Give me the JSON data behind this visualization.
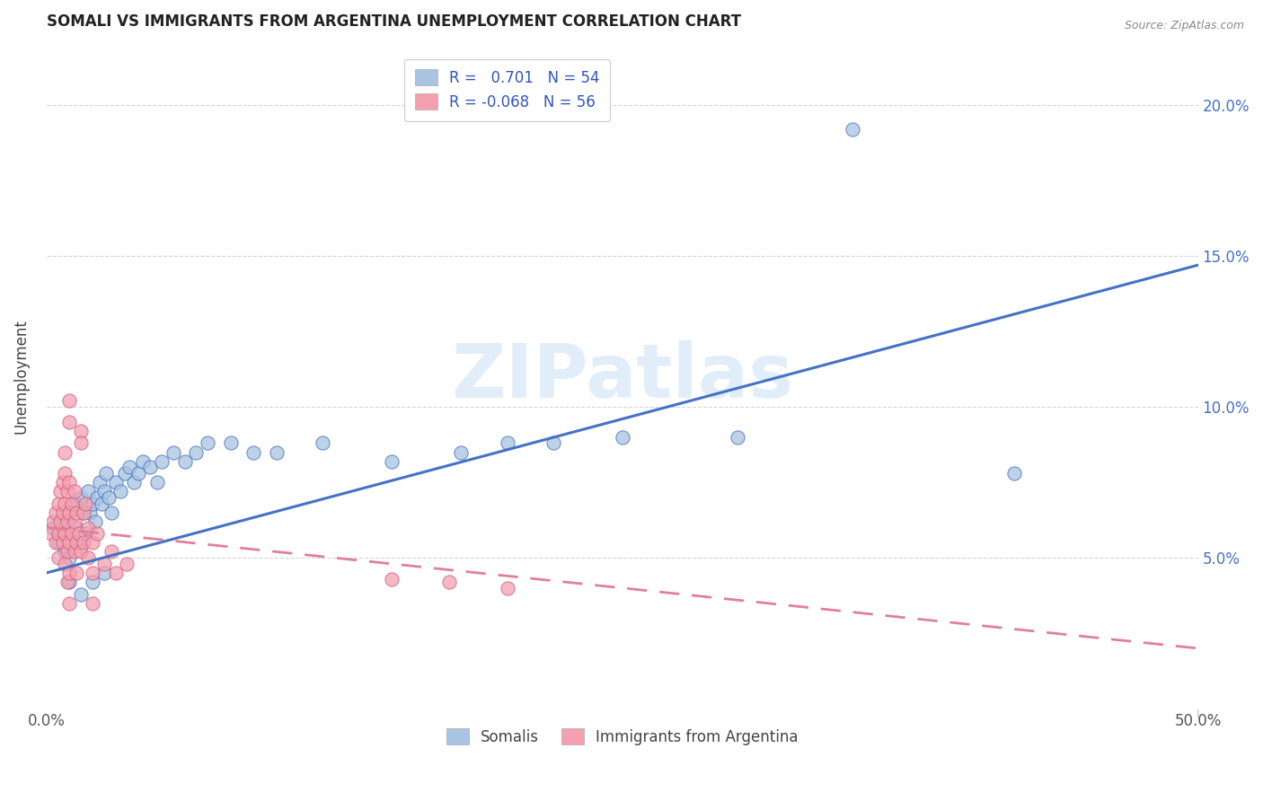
{
  "title": "SOMALI VS IMMIGRANTS FROM ARGENTINA UNEMPLOYMENT CORRELATION CHART",
  "source": "Source: ZipAtlas.com",
  "ylabel": "Unemployment",
  "somali_color": "#a8c4e0",
  "argentina_color": "#f4a0b0",
  "somali_line_color": "#4472c4",
  "argentina_line_color": "#e08098",
  "watermark": "ZIPatlas",
  "xmin": 0.0,
  "xmax": 0.5,
  "ymin": 0.0,
  "ymax": 0.22,
  "ytick_vals": [
    0.05,
    0.1,
    0.15,
    0.2
  ],
  "ytick_labels": [
    "5.0%",
    "10.0%",
    "15.0%",
    "20.0%"
  ],
  "somali_scatter": [
    [
      0.003,
      0.06
    ],
    [
      0.005,
      0.055
    ],
    [
      0.007,
      0.058
    ],
    [
      0.008,
      0.052
    ],
    [
      0.009,
      0.062
    ],
    [
      0.01,
      0.065
    ],
    [
      0.01,
      0.05
    ],
    [
      0.012,
      0.068
    ],
    [
      0.013,
      0.06
    ],
    [
      0.014,
      0.055
    ],
    [
      0.015,
      0.07
    ],
    [
      0.016,
      0.065
    ],
    [
      0.017,
      0.058
    ],
    [
      0.018,
      0.072
    ],
    [
      0.019,
      0.065
    ],
    [
      0.02,
      0.068
    ],
    [
      0.021,
      0.062
    ],
    [
      0.022,
      0.07
    ],
    [
      0.023,
      0.075
    ],
    [
      0.024,
      0.068
    ],
    [
      0.025,
      0.072
    ],
    [
      0.026,
      0.078
    ],
    [
      0.027,
      0.07
    ],
    [
      0.028,
      0.065
    ],
    [
      0.03,
      0.075
    ],
    [
      0.032,
      0.072
    ],
    [
      0.034,
      0.078
    ],
    [
      0.036,
      0.08
    ],
    [
      0.038,
      0.075
    ],
    [
      0.04,
      0.078
    ],
    [
      0.042,
      0.082
    ],
    [
      0.045,
      0.08
    ],
    [
      0.048,
      0.075
    ],
    [
      0.05,
      0.082
    ],
    [
      0.055,
      0.085
    ],
    [
      0.06,
      0.082
    ],
    [
      0.065,
      0.085
    ],
    [
      0.07,
      0.088
    ],
    [
      0.08,
      0.088
    ],
    [
      0.09,
      0.085
    ],
    [
      0.1,
      0.085
    ],
    [
      0.12,
      0.088
    ],
    [
      0.15,
      0.082
    ],
    [
      0.18,
      0.085
    ],
    [
      0.2,
      0.088
    ],
    [
      0.22,
      0.088
    ],
    [
      0.25,
      0.09
    ],
    [
      0.3,
      0.09
    ],
    [
      0.35,
      0.192
    ],
    [
      0.42,
      0.078
    ],
    [
      0.01,
      0.042
    ],
    [
      0.015,
      0.038
    ],
    [
      0.02,
      0.042
    ],
    [
      0.025,
      0.045
    ]
  ],
  "argentina_scatter": [
    [
      0.002,
      0.058
    ],
    [
      0.003,
      0.062
    ],
    [
      0.004,
      0.065
    ],
    [
      0.004,
      0.055
    ],
    [
      0.005,
      0.068
    ],
    [
      0.005,
      0.058
    ],
    [
      0.005,
      0.05
    ],
    [
      0.006,
      0.072
    ],
    [
      0.006,
      0.062
    ],
    [
      0.007,
      0.075
    ],
    [
      0.007,
      0.065
    ],
    [
      0.007,
      0.055
    ],
    [
      0.008,
      0.078
    ],
    [
      0.008,
      0.068
    ],
    [
      0.008,
      0.058
    ],
    [
      0.008,
      0.048
    ],
    [
      0.008,
      0.085
    ],
    [
      0.009,
      0.072
    ],
    [
      0.009,
      0.062
    ],
    [
      0.009,
      0.052
    ],
    [
      0.009,
      0.042
    ],
    [
      0.01,
      0.075
    ],
    [
      0.01,
      0.065
    ],
    [
      0.01,
      0.055
    ],
    [
      0.01,
      0.045
    ],
    [
      0.01,
      0.035
    ],
    [
      0.01,
      0.095
    ],
    [
      0.01,
      0.102
    ],
    [
      0.011,
      0.068
    ],
    [
      0.011,
      0.058
    ],
    [
      0.012,
      0.072
    ],
    [
      0.012,
      0.062
    ],
    [
      0.012,
      0.052
    ],
    [
      0.013,
      0.065
    ],
    [
      0.013,
      0.055
    ],
    [
      0.013,
      0.045
    ],
    [
      0.014,
      0.058
    ],
    [
      0.015,
      0.052
    ],
    [
      0.015,
      0.092
    ],
    [
      0.015,
      0.088
    ],
    [
      0.016,
      0.065
    ],
    [
      0.016,
      0.055
    ],
    [
      0.017,
      0.068
    ],
    [
      0.018,
      0.06
    ],
    [
      0.018,
      0.05
    ],
    [
      0.02,
      0.055
    ],
    [
      0.02,
      0.045
    ],
    [
      0.02,
      0.035
    ],
    [
      0.022,
      0.058
    ],
    [
      0.025,
      0.048
    ],
    [
      0.028,
      0.052
    ],
    [
      0.03,
      0.045
    ],
    [
      0.035,
      0.048
    ],
    [
      0.15,
      0.043
    ],
    [
      0.175,
      0.042
    ],
    [
      0.2,
      0.04
    ]
  ],
  "somali_line_x": [
    0.0,
    0.5
  ],
  "somali_line_y": [
    0.045,
    0.147
  ],
  "argentina_line_x": [
    0.0,
    0.5
  ],
  "argentina_line_y": [
    0.06,
    0.02
  ]
}
